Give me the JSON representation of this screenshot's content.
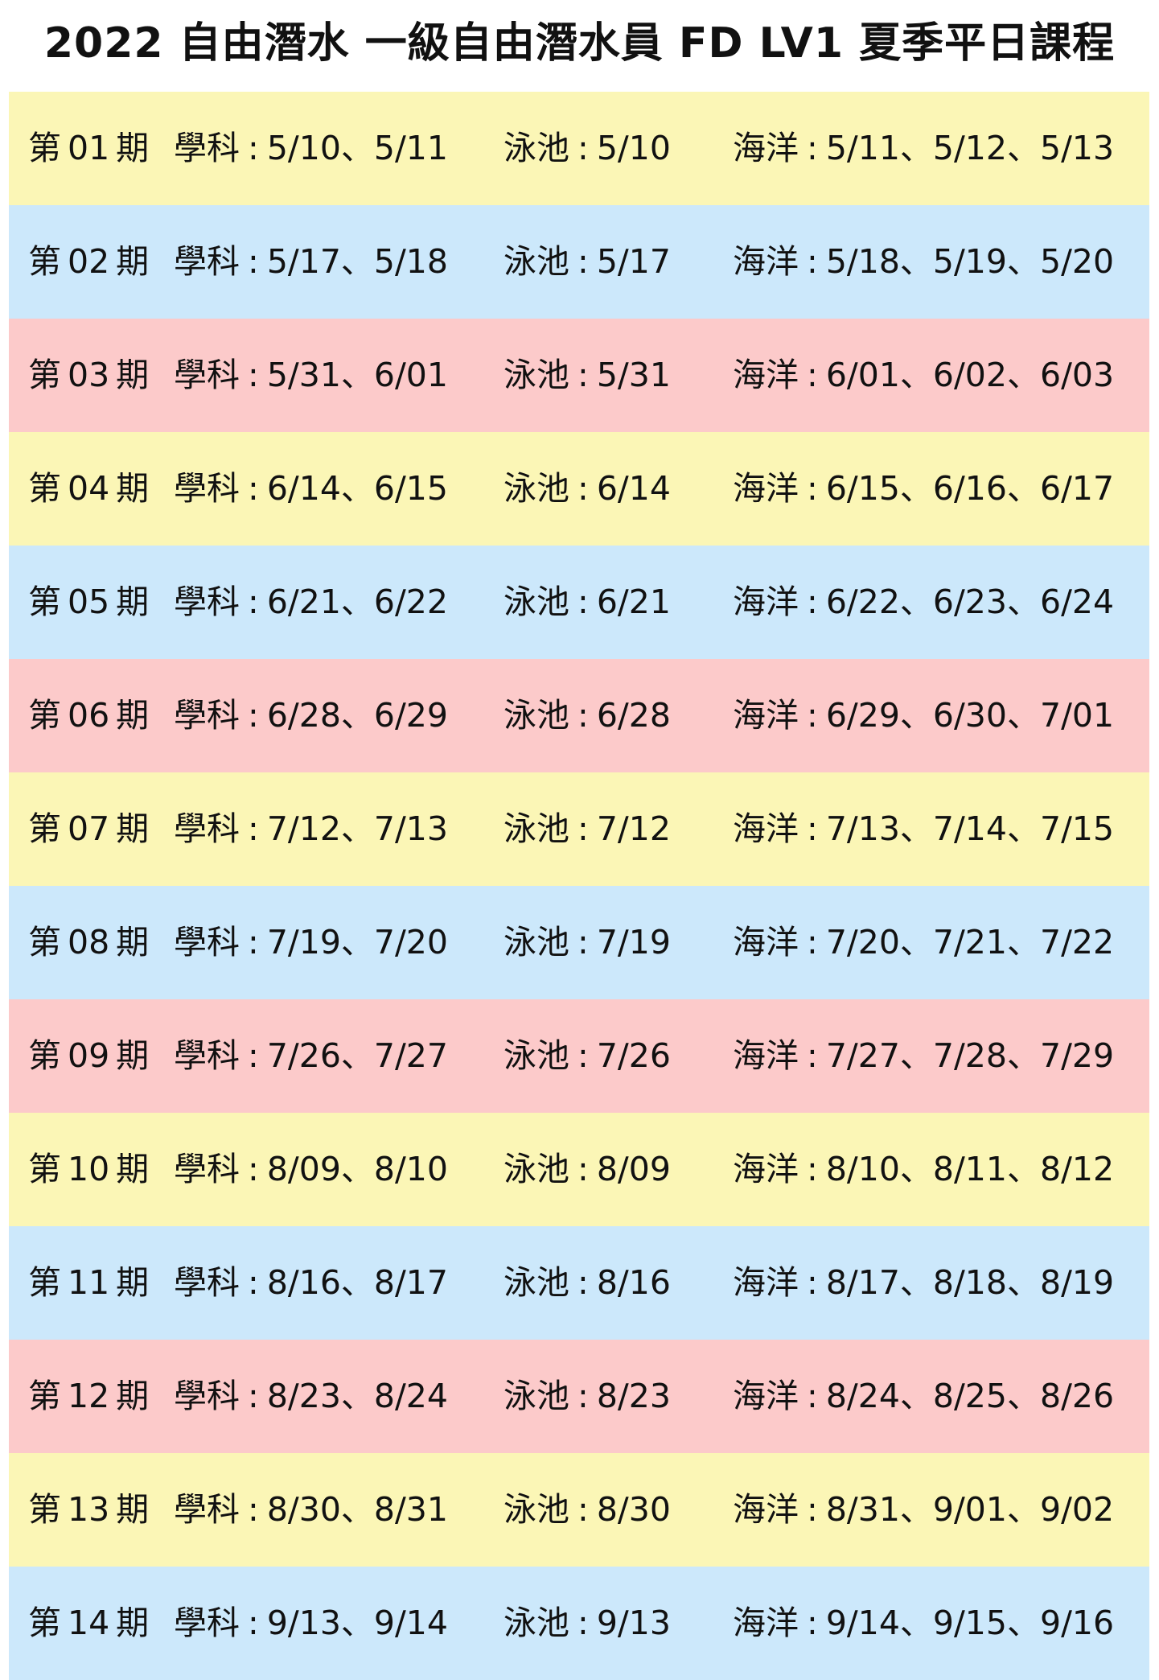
{
  "title": "2022 自由潛水 一級自由潛水員 FD LV1 夏季平日課程",
  "labels": {
    "period_prefix": "第",
    "period_suffix": "期",
    "theory": "學科",
    "pool": "泳池",
    "ocean": "海洋",
    "colon": ":",
    "separator": "、"
  },
  "colors": {
    "yellow": "#fbf6b6",
    "blue": "#cce8fb",
    "pink": "#fccaca"
  },
  "rows": [
    {
      "period": "01",
      "color": "yellow",
      "theory": [
        "5/10",
        "5/11"
      ],
      "pool": "5/10",
      "ocean": [
        "5/11",
        "5/12",
        "5/13"
      ]
    },
    {
      "period": "02",
      "color": "blue",
      "theory": [
        "5/17",
        "5/18"
      ],
      "pool": "5/17",
      "ocean": [
        "5/18",
        "5/19",
        "5/20"
      ]
    },
    {
      "period": "03",
      "color": "pink",
      "theory": [
        "5/31",
        "6/01"
      ],
      "pool": "5/31",
      "ocean": [
        "6/01",
        "6/02",
        "6/03"
      ]
    },
    {
      "period": "04",
      "color": "yellow",
      "theory": [
        "6/14",
        "6/15"
      ],
      "pool": "6/14",
      "ocean": [
        "6/15",
        "6/16",
        "6/17"
      ]
    },
    {
      "period": "05",
      "color": "blue",
      "theory": [
        "6/21",
        "6/22"
      ],
      "pool": "6/21",
      "ocean": [
        "6/22",
        "6/23",
        "6/24"
      ]
    },
    {
      "period": "06",
      "color": "pink",
      "theory": [
        "6/28",
        "6/29"
      ],
      "pool": "6/28",
      "ocean": [
        "6/29",
        "6/30",
        "7/01"
      ]
    },
    {
      "period": "07",
      "color": "yellow",
      "theory": [
        "7/12",
        "7/13"
      ],
      "pool": "7/12",
      "ocean": [
        "7/13",
        "7/14",
        "7/15"
      ]
    },
    {
      "period": "08",
      "color": "blue",
      "theory": [
        "7/19",
        "7/20"
      ],
      "pool": "7/19",
      "ocean": [
        "7/20",
        "7/21",
        "7/22"
      ]
    },
    {
      "period": "09",
      "color": "pink",
      "theory": [
        "7/26",
        "7/27"
      ],
      "pool": "7/26",
      "ocean": [
        "7/27",
        "7/28",
        "7/29"
      ]
    },
    {
      "period": "10",
      "color": "yellow",
      "theory": [
        "8/09",
        "8/10"
      ],
      "pool": "8/09",
      "ocean": [
        "8/10",
        "8/11",
        "8/12"
      ]
    },
    {
      "period": "11",
      "color": "blue",
      "theory": [
        "8/16",
        "8/17"
      ],
      "pool": "8/16",
      "ocean": [
        "8/17",
        "8/18",
        "8/19"
      ]
    },
    {
      "period": "12",
      "color": "pink",
      "theory": [
        "8/23",
        "8/24"
      ],
      "pool": "8/23",
      "ocean": [
        "8/24",
        "8/25",
        "8/26"
      ]
    },
    {
      "period": "13",
      "color": "yellow",
      "theory": [
        "8/30",
        "8/31"
      ],
      "pool": "8/30",
      "ocean": [
        "8/31",
        "9/01",
        "9/02"
      ]
    },
    {
      "period": "14",
      "color": "blue",
      "theory": [
        "9/13",
        "9/14"
      ],
      "pool": "9/13",
      "ocean": [
        "9/14",
        "9/15",
        "9/16"
      ]
    }
  ]
}
